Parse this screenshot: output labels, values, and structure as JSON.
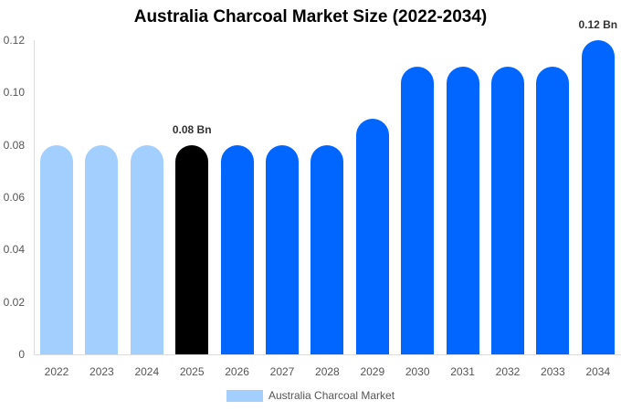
{
  "chart_data": {
    "type": "bar",
    "title": "Australia Charcoal Market Size (2022-2034)",
    "xlabel": "",
    "ylabel": "",
    "ylim": [
      0,
      0.12
    ],
    "yticks": [
      "0",
      "0.02",
      "0.04",
      "0.06",
      "0.08",
      "0.10",
      "0.12"
    ],
    "grid": false,
    "legend_position": "bottom",
    "categories": [
      "2022",
      "2023",
      "2024",
      "2025",
      "2026",
      "2027",
      "2028",
      "2029",
      "2030",
      "2031",
      "2032",
      "2033",
      "2034"
    ],
    "series": [
      {
        "name": "Australia Charcoal Market",
        "values": [
          0.08,
          0.08,
          0.08,
          0.08,
          0.08,
          0.08,
          0.08,
          0.09,
          0.11,
          0.11,
          0.11,
          0.11,
          0.12
        ]
      }
    ],
    "bar_colors": [
      "#a3cfff",
      "#a3cfff",
      "#a3cfff",
      "#000000",
      "#0066ff",
      "#0066ff",
      "#0066ff",
      "#0066ff",
      "#0066ff",
      "#0066ff",
      "#0066ff",
      "#0066ff",
      "#0066ff"
    ],
    "annotations": [
      {
        "category": "2025",
        "text": "0.08 Bn"
      },
      {
        "category": "2034",
        "text": "0.12 Bn"
      }
    ]
  },
  "legend": {
    "label": "Australia Charcoal Market",
    "color": "#a3cfff"
  }
}
